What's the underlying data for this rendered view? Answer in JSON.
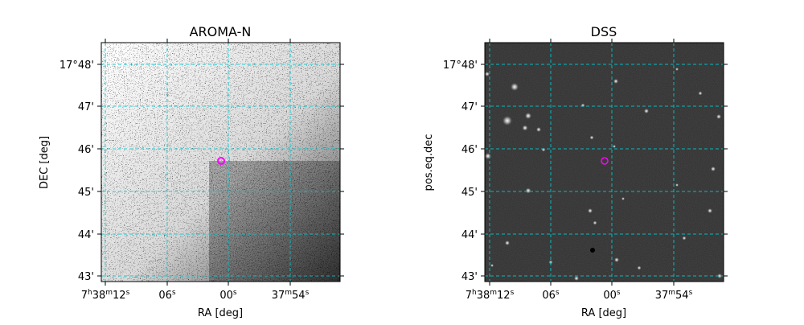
{
  "panels": [
    {
      "title": "AROMA-N",
      "xlabel": "RA [deg]",
      "ylabel": "DEC [deg]",
      "x_ticks": [
        "7h38m12s",
        "06s",
        "00s",
        "37m54s"
      ],
      "y_ticks": [
        "17°48'",
        "47'",
        "46'",
        "45'",
        "44'",
        "43'"
      ],
      "image": "noisy grayscale sky image",
      "marker": "magenta circle at target position",
      "grid": true
    },
    {
      "title": "DSS",
      "xlabel": "RA [deg]",
      "ylabel": "pos.eq.dec",
      "x_ticks": [
        "7h38m12s",
        "06s",
        "00s",
        "37m54s"
      ],
      "y_ticks": [
        "17°48'",
        "47'",
        "46'",
        "45'",
        "44'",
        "43'"
      ],
      "image": "dark sky image with stars",
      "marker": "magenta circle at target position",
      "grid": true
    }
  ],
  "colors": {
    "grid": "#00c8d0",
    "marker": "#ff00ff",
    "dss_background": "#2a2a2a"
  }
}
